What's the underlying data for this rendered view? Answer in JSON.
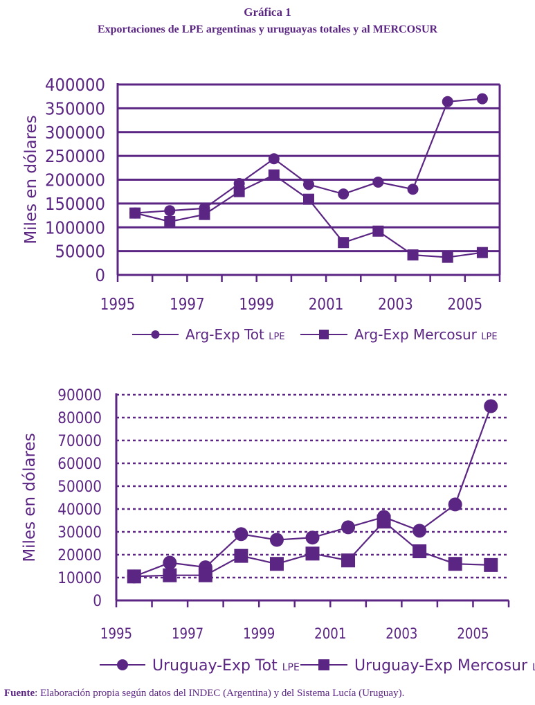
{
  "header": {
    "title": "Gráfica 1",
    "subtitle": "Exportaciones de LPE argentinas y uruguayas totales y al MERCOSUR"
  },
  "source": {
    "prefix": "Fuente",
    "text": ": Elaboración propia según datos del INDEC (Argentina) y del Sistema Lucía (Uruguay)."
  },
  "colors": {
    "accent": "#5b2583"
  },
  "chart_data": [
    {
      "type": "line",
      "ylabel": "Miles en dólares",
      "ylim": [
        0,
        400000
      ],
      "yticks": [
        0,
        50000,
        100000,
        150000,
        200000,
        250000,
        300000,
        350000,
        400000
      ],
      "ytick_labels": [
        "0",
        "50000",
        "100000",
        "150000",
        "200000",
        "250000",
        "300000",
        "350000",
        "400000"
      ],
      "grid": "solid",
      "categories": [
        "1995",
        "1996",
        "1997",
        "1998",
        "1999",
        "2000",
        "2001",
        "2002",
        "2003",
        "2004",
        "2005"
      ],
      "xtick_labels": [
        "1995",
        "1997",
        "1999",
        "2001",
        "2003",
        "2005"
      ],
      "series": [
        {
          "name": "Arg-Exp Tot",
          "suffix": "LPE",
          "marker": "circle",
          "values": [
            130000,
            135000,
            140000,
            192000,
            244000,
            190000,
            170000,
            195000,
            180000,
            364000,
            370000
          ]
        },
        {
          "name": "Arg-Exp Mercosur",
          "suffix": "LPE",
          "marker": "square",
          "values": [
            130000,
            112000,
            127000,
            175000,
            210000,
            159000,
            68000,
            92000,
            42000,
            37000,
            47000
          ]
        }
      ]
    },
    {
      "type": "line",
      "ylabel": "Miles en dólares",
      "ylim": [
        0,
        90000
      ],
      "yticks": [
        0,
        10000,
        20000,
        30000,
        40000,
        50000,
        60000,
        70000,
        80000,
        90000
      ],
      "ytick_labels": [
        "0",
        "10000",
        "20000",
        "30000",
        "40000",
        "50000",
        "60000",
        "70000",
        "80000",
        "90000"
      ],
      "grid": "dotted",
      "categories": [
        "1995",
        "1996",
        "1997",
        "1998",
        "1999",
        "2000",
        "2001",
        "2002",
        "2003",
        "2004",
        "2005"
      ],
      "xtick_labels": [
        "1995",
        "1997",
        "1999",
        "2001",
        "2003",
        "2005"
      ],
      "series": [
        {
          "name": "Uruguay-Exp Tot",
          "suffix": "LPE",
          "marker": "circle",
          "values": [
            10500,
            16500,
            14500,
            29000,
            26500,
            27500,
            32000,
            36500,
            30500,
            42000,
            85000
          ]
        },
        {
          "name": "Uruguay-Exp Mercosur",
          "suffix": "LPE",
          "marker": "square",
          "values": [
            10500,
            11000,
            11000,
            19500,
            16000,
            20500,
            17500,
            34500,
            21500,
            16000,
            15500
          ]
        }
      ]
    }
  ]
}
